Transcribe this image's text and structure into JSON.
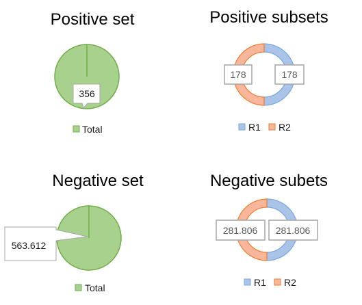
{
  "colors": {
    "green_fill": "#a9d18e",
    "green_stroke": "#70ad47",
    "blue_fill": "#a9c4e8",
    "blue_stroke": "#7aa6db",
    "orange_fill": "#f8b79a",
    "orange_stroke": "#ed7d31",
    "callout_border": "#a6a6a6"
  },
  "chart_data": [
    {
      "type": "pie",
      "title": "Positive set",
      "categories": [
        "Total"
      ],
      "values": [
        356
      ],
      "data_labels": [
        "356"
      ],
      "legend": [
        "Total"
      ],
      "legend_position": "bottom"
    },
    {
      "type": "pie",
      "subtype": "doughnut",
      "title": "Positive subsets",
      "categories": [
        "R1",
        "R2"
      ],
      "values": [
        178,
        178
      ],
      "data_labels": [
        "178",
        "178"
      ],
      "legend": [
        "R1",
        "R2"
      ],
      "legend_position": "bottom"
    },
    {
      "type": "pie",
      "title": "Negative set",
      "categories": [
        "Total"
      ],
      "values": [
        563.612
      ],
      "data_labels": [
        "563.612"
      ],
      "legend": [
        "Total"
      ],
      "legend_position": "bottom"
    },
    {
      "type": "pie",
      "subtype": "doughnut",
      "title": "Negative subets",
      "categories": [
        "R1",
        "R2"
      ],
      "values": [
        281.806,
        281.806
      ],
      "data_labels": [
        "281.806",
        "281.806"
      ],
      "legend": [
        "R1",
        "R2"
      ],
      "legend_position": "bottom"
    }
  ]
}
